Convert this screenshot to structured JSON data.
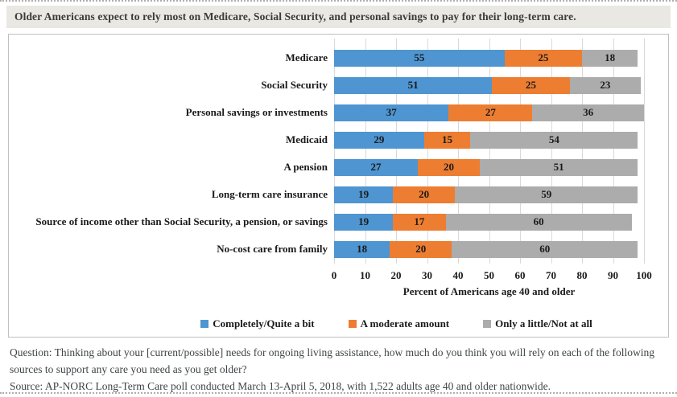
{
  "page": {
    "title": "Older Americans expect to rely most on Medicare, Social Security, and personal savings to pay for their long-term care."
  },
  "colors": {
    "title_bar_bg": "#e9e8e3",
    "panel_border": "#bfbfbf",
    "gridline": "#d9d9d9",
    "series_blue": "#4e95d1",
    "series_orange": "#ed7d31",
    "series_gray": "#acacac"
  },
  "chart_data": {
    "type": "bar",
    "orientation": "horizontal-stacked",
    "categories": [
      "Medicare",
      "Social Security",
      "Personal savings or investments",
      "Medicaid",
      "A pension",
      "Long-term care insurance",
      "Source of income other than Social Security, a pension, or savings",
      "No-cost care from family"
    ],
    "series": [
      {
        "name": "Completely/Quite a bit",
        "color": "#4e95d1",
        "values": [
          55,
          51,
          37,
          29,
          27,
          19,
          19,
          18
        ]
      },
      {
        "name": "A moderate amount",
        "color": "#ed7d31",
        "values": [
          25,
          25,
          27,
          15,
          20,
          20,
          17,
          20
        ]
      },
      {
        "name": "Only a little/Not at all",
        "color": "#acacac",
        "values": [
          18,
          23,
          36,
          54,
          51,
          59,
          60,
          60
        ]
      }
    ],
    "xlabel": "Percent of Americans age 40 and older",
    "xlim": [
      0,
      100
    ],
    "xticks": [
      0,
      10,
      20,
      30,
      40,
      50,
      60,
      70,
      80,
      90,
      100
    ],
    "grid": true,
    "legend_position": "bottom",
    "data_labels": true
  },
  "footer": {
    "question": "Question: Thinking about your [current/possible] needs for ongoing living assistance, how much do you think you will rely on each of the following sources to support any care you need as you get older?",
    "source": "Source: AP-NORC Long-Term Care poll conducted March 13-April 5, 2018, with 1,522 adults age 40 and older nationwide."
  }
}
